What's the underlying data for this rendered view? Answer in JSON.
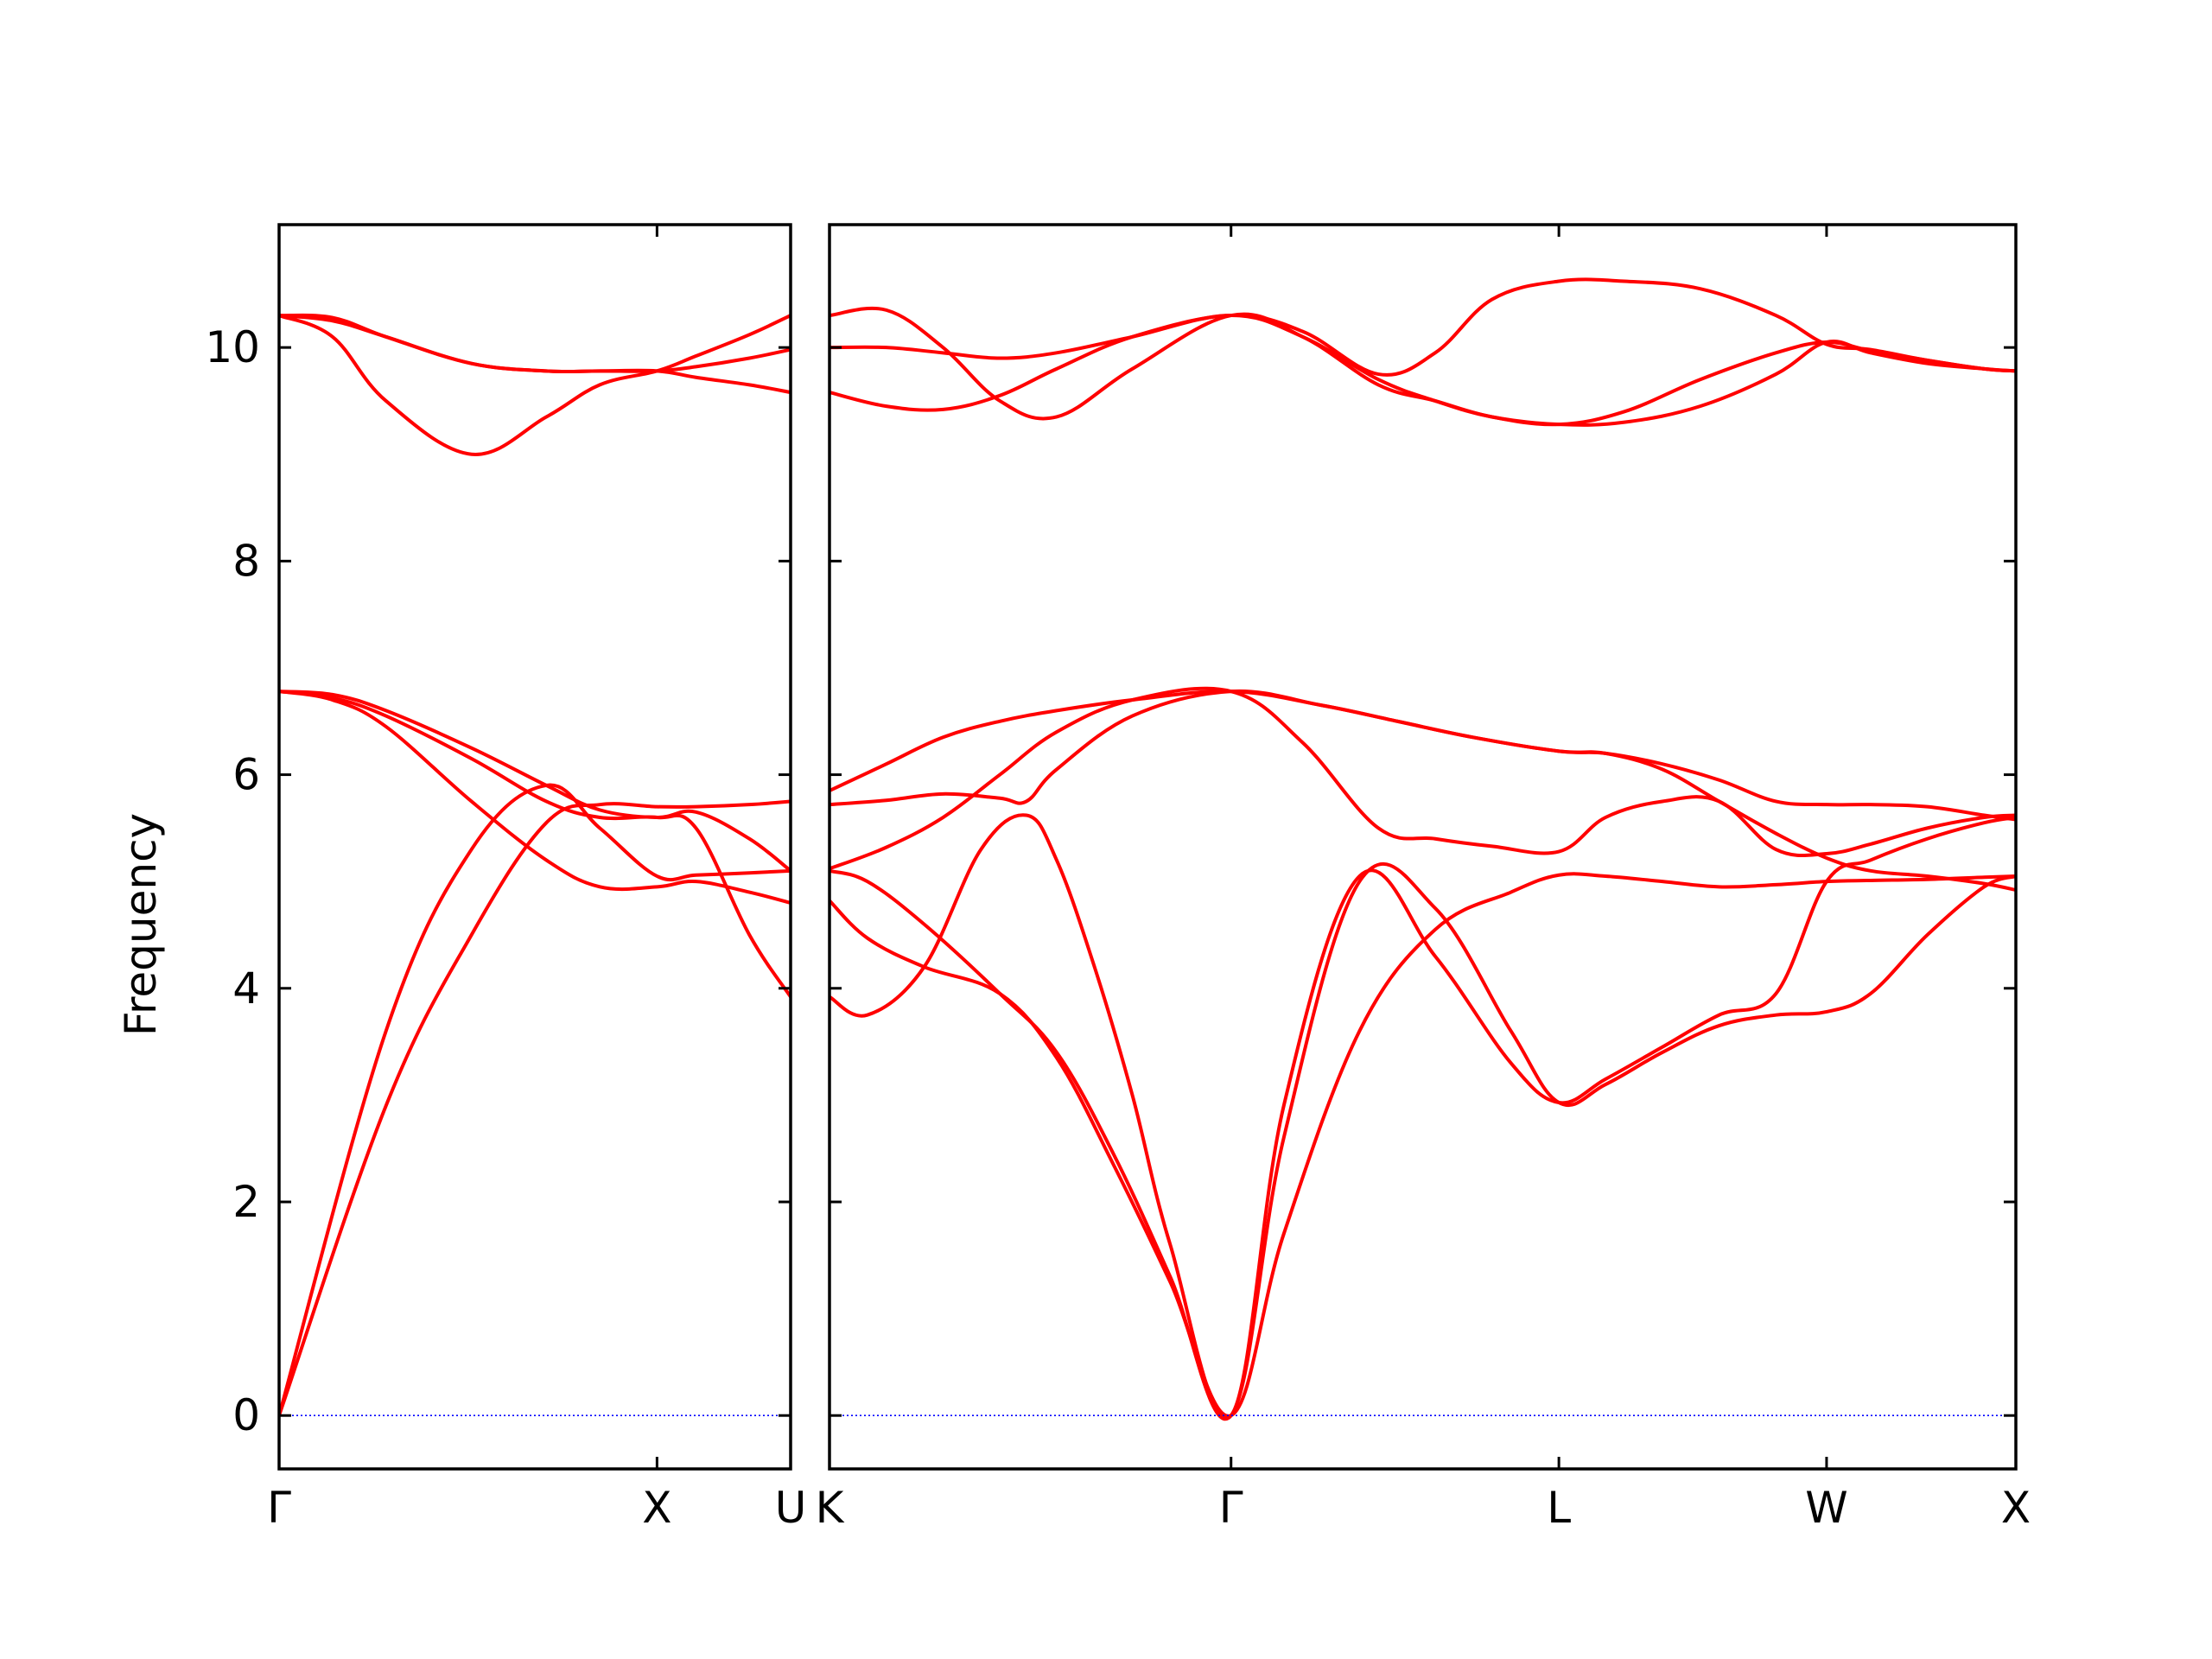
{
  "figure": {
    "ylabel": "Frequency",
    "band_color": "#ff0000",
    "zero_line_color": "#0000ff",
    "frame_color": "#000000"
  },
  "chart_data": [
    {
      "type": "line",
      "panel": "left",
      "path_labels": [
        "Γ",
        "X",
        "U"
      ],
      "label_positions": [
        0,
        0.7071,
        0.9571
      ],
      "xlim": [
        0,
        0.9571
      ],
      "ylim": [
        -0.5,
        11.15
      ],
      "yticks": [
        0,
        2,
        4,
        6,
        8,
        10
      ],
      "ylabel": "Frequency",
      "grid": false,
      "series": [
        {
          "x": [
            0,
            0.2,
            0.36,
            0.5,
            0.6,
            0.7071,
            0.78,
            0.88,
            0.9571
          ],
          "values": [
            0,
            2.9,
            4.5,
            5.55,
            5.72,
            5.7,
            5.7,
            5.72,
            5.75
          ]
        },
        {
          "x": [
            0,
            0.2,
            0.36,
            0.5,
            0.6,
            0.7071,
            0.78,
            0.88,
            0.9571
          ],
          "values": [
            0,
            3.6,
            5.3,
            5.9,
            5.5,
            5.05,
            5.06,
            5.08,
            5.1
          ]
        },
        {
          "x": [
            0,
            0.1,
            0.2,
            0.36,
            0.5,
            0.6,
            0.7071,
            0.78,
            0.88,
            0.9571
          ],
          "values": [
            6.78,
            6.7,
            6.45,
            5.75,
            5.2,
            4.95,
            4.95,
            5.0,
            4.9,
            4.8
          ]
        },
        {
          "x": [
            0,
            0.1,
            0.2,
            0.36,
            0.5,
            0.6,
            0.7071,
            0.78,
            0.88,
            0.9571
          ],
          "values": [
            6.78,
            6.75,
            6.6,
            6.25,
            5.9,
            5.67,
            5.6,
            5.65,
            5.4,
            5.1
          ]
        },
        {
          "x": [
            0,
            0.1,
            0.2,
            0.36,
            0.5,
            0.6,
            0.7071,
            0.78,
            0.88,
            0.9571
          ],
          "values": [
            6.78,
            6.72,
            6.55,
            6.15,
            5.75,
            5.6,
            5.6,
            5.5,
            4.5,
            3.92
          ]
        },
        {
          "x": [
            0,
            0.1,
            0.2,
            0.36,
            0.5,
            0.6,
            0.7071,
            0.78,
            0.88,
            0.9571
          ],
          "values": [
            10.3,
            10.25,
            10.1,
            9.85,
            9.78,
            9.78,
            9.78,
            9.72,
            9.65,
            9.58
          ]
        },
        {
          "x": [
            0,
            0.1,
            0.2,
            0.36,
            0.5,
            0.6,
            0.7071,
            0.78,
            0.88,
            0.9571
          ],
          "values": [
            10.3,
            10.28,
            10.1,
            9.85,
            9.78,
            9.78,
            9.78,
            9.82,
            9.9,
            9.98
          ]
        },
        {
          "x": [
            0,
            0.1,
            0.2,
            0.36,
            0.5,
            0.6,
            0.7071,
            0.78,
            0.88,
            0.9571
          ],
          "values": [
            10.3,
            10.1,
            9.5,
            9.0,
            9.35,
            9.65,
            9.78,
            9.92,
            10.12,
            10.3
          ]
        }
      ]
    },
    {
      "type": "line",
      "panel": "right",
      "path_labels": [
        "K",
        "Γ",
        "L",
        "W",
        "X"
      ],
      "label_positions": [
        0,
        1.0607,
        1.9267,
        2.6338,
        3.1338
      ],
      "xlim": [
        0,
        3.1338
      ],
      "ylim": [
        -0.5,
        11.15
      ],
      "yticks": [
        0,
        2,
        4,
        6,
        8,
        10
      ],
      "grid": false,
      "series": [
        {
          "x": [
            0,
            0.1,
            0.25,
            0.45,
            0.6,
            0.75,
            0.9,
            1.0607,
            1.2,
            1.4,
            1.6,
            1.8,
            1.9267,
            2.05,
            2.2,
            2.35,
            2.5,
            2.6338,
            2.75,
            2.9,
            3.05,
            3.1338
          ],
          "values": [
            4.82,
            4.47,
            4.2,
            3.95,
            3.35,
            2.35,
            1.25,
            0,
            1.7,
            3.6,
            4.55,
            4.9,
            5.06,
            5.05,
            5.0,
            4.95,
            4.97,
            5.0,
            5.01,
            5.02,
            5.04,
            5.05
          ]
        },
        {
          "x": [
            0,
            0.1,
            0.25,
            0.45,
            0.6,
            0.75,
            0.9,
            1.0607,
            1.2,
            1.4,
            1.6,
            1.8,
            1.9267,
            2.05,
            2.2,
            2.35,
            2.5,
            2.6338,
            2.75,
            2.9,
            3.05,
            3.1338
          ],
          "values": [
            5.1,
            5.0,
            4.6,
            3.95,
            3.4,
            2.45,
            1.3,
            0,
            2.6,
            5.0,
            4.75,
            3.6,
            2.93,
            3.1,
            3.4,
            3.65,
            3.75,
            3.78,
            3.95,
            4.5,
            4.95,
            5.05
          ]
        },
        {
          "x": [
            0,
            0.1,
            0.25,
            0.4,
            0.52,
            0.6,
            0.7,
            0.8,
            0.9,
            1.0607,
            1.2,
            1.4,
            1.6,
            1.8,
            1.9267,
            2.05,
            2.2,
            2.35,
            2.5,
            2.6338,
            2.75,
            2.9,
            3.05,
            3.1338
          ],
          "values": [
            3.92,
            3.75,
            4.2,
            5.3,
            5.62,
            5.2,
            4.2,
            3.0,
            1.6,
            0,
            2.9,
            5.05,
            4.3,
            3.3,
            2.93,
            3.15,
            3.45,
            3.75,
            3.95,
            5.0,
            5.2,
            5.4,
            5.55,
            5.6
          ]
        },
        {
          "x": [
            0,
            0.15,
            0.3,
            0.45,
            0.6,
            0.8,
            1.0607,
            1.25,
            1.45,
            1.6,
            1.75,
            1.9267,
            2.05,
            2.2,
            2.35,
            2.5,
            2.6338,
            2.75,
            2.9,
            3.05,
            3.1338
          ],
          "values": [
            5.12,
            5.32,
            5.6,
            6.0,
            6.4,
            6.7,
            6.78,
            6.3,
            5.5,
            5.4,
            5.33,
            5.28,
            5.6,
            5.75,
            5.75,
            5.3,
            5.26,
            5.35,
            5.5,
            5.6,
            5.62
          ]
        },
        {
          "x": [
            0,
            0.15,
            0.3,
            0.45,
            0.52,
            0.6,
            0.8,
            1.0607,
            1.3,
            1.5,
            1.7,
            1.9267,
            2.05,
            2.2,
            2.35,
            2.5,
            2.6338,
            2.75,
            2.9,
            3.05,
            3.1338
          ],
          "values": [
            5.72,
            5.76,
            5.82,
            5.78,
            5.75,
            6.05,
            6.55,
            6.78,
            6.65,
            6.5,
            6.35,
            6.22,
            6.2,
            6.05,
            5.75,
            5.45,
            5.22,
            5.1,
            5.05,
            4.98,
            4.92
          ]
        },
        {
          "x": [
            0,
            0.15,
            0.3,
            0.45,
            0.6,
            0.8,
            1.0607,
            1.3,
            1.5,
            1.7,
            1.9267,
            2.05,
            2.2,
            2.35,
            2.5,
            2.6338,
            2.75,
            2.9,
            3.05,
            3.1338
          ],
          "values": [
            5.85,
            6.1,
            6.35,
            6.5,
            6.6,
            6.7,
            6.78,
            6.65,
            6.5,
            6.35,
            6.22,
            6.2,
            6.1,
            5.95,
            5.75,
            5.72,
            5.72,
            5.7,
            5.62,
            5.58
          ]
        },
        {
          "x": [
            0,
            0.15,
            0.3,
            0.45,
            0.6,
            0.8,
            1.0607,
            1.25,
            1.45,
            1.6,
            1.75,
            1.9267,
            2.1,
            2.3,
            2.5,
            2.6338,
            2.75,
            2.9,
            3.05,
            3.1338
          ],
          "values": [
            10.3,
            10.35,
            10.0,
            9.5,
            9.35,
            9.8,
            10.3,
            10.1,
            9.65,
            9.5,
            9.35,
            9.28,
            9.3,
            9.45,
            9.75,
            10.05,
            9.95,
            9.85,
            9.8,
            9.78
          ]
        },
        {
          "x": [
            0,
            0.15,
            0.3,
            0.45,
            0.6,
            0.8,
            1.0607,
            1.25,
            1.45,
            1.6,
            1.75,
            1.9267,
            2.1,
            2.3,
            2.5,
            2.6338,
            2.75,
            2.9,
            3.05,
            3.1338
          ],
          "values": [
            10.0,
            10.0,
            9.95,
            9.9,
            9.95,
            10.1,
            10.3,
            10.1,
            9.7,
            9.5,
            9.35,
            9.28,
            9.4,
            9.7,
            9.95,
            10.05,
            9.97,
            9.88,
            9.8,
            9.78
          ]
        },
        {
          "x": [
            0,
            0.15,
            0.3,
            0.45,
            0.6,
            0.8,
            1.0607,
            1.25,
            1.45,
            1.6,
            1.75,
            1.9267,
            2.1,
            2.3,
            2.5,
            2.6338,
            2.75,
            2.9,
            3.05,
            3.1338
          ],
          "values": [
            9.58,
            9.45,
            9.42,
            9.55,
            9.8,
            10.1,
            10.3,
            10.15,
            9.75,
            9.95,
            10.45,
            10.62,
            10.62,
            10.55,
            10.3,
            10.03,
            9.98,
            9.88,
            9.8,
            9.78
          ]
        }
      ]
    }
  ]
}
